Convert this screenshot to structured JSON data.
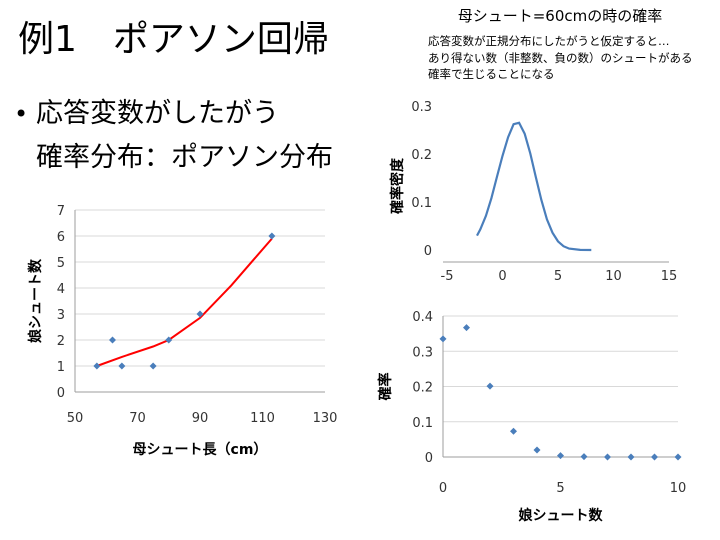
{
  "slide": {
    "title": "例1　ポアソン回帰",
    "bullet_line1": "応答変数がしたがう",
    "bullet_line2": "確率分布：ポアソン分布",
    "right_title": "母シュート=60cmの時の確率",
    "note_lines": [
      "応答変数が正規分布にしたがうと仮定すると…",
      "あり得ない数（非整数、負の数）のシュートがある",
      "確率で生じることになる"
    ]
  },
  "chart_data": [
    {
      "type": "scatter",
      "xlabel": "母シュート長（cm）",
      "ylabel": "娘シュート数",
      "xlim": [
        50,
        130
      ],
      "ylim": [
        0,
        7
      ],
      "xticks": [
        50,
        70,
        90,
        110,
        130
      ],
      "yticks": [
        0,
        1,
        2,
        3,
        4,
        5,
        6,
        7
      ],
      "grid": true,
      "points": {
        "x": [
          57,
          62,
          65,
          75,
          80,
          90,
          113
        ],
        "y": [
          1,
          2,
          1,
          1,
          2,
          3,
          6
        ]
      },
      "fit_line": {
        "x": [
          57,
          65,
          75,
          80,
          90,
          100,
          113
        ],
        "y": [
          1.0,
          1.35,
          1.75,
          2.0,
          2.85,
          4.1,
          5.9
        ],
        "color": "#ff0000"
      },
      "point_color": "#4a7ebb"
    },
    {
      "type": "line",
      "ylabel": "確率密度",
      "xlim": [
        -5,
        15
      ],
      "ylim": [
        0,
        0.3
      ],
      "xticks": [
        -5,
        0,
        5,
        10,
        15
      ],
      "yticks": [
        0,
        0.1,
        0.2,
        0.3
      ],
      "grid": false,
      "series": [
        {
          "x": [
            -2.3,
            -2,
            -1.5,
            -1,
            -0.5,
            0,
            0.5,
            1,
            1.5,
            2,
            2.5,
            3,
            3.5,
            4,
            4.5,
            5,
            5.5,
            6,
            7,
            8
          ],
          "y": [
            0.03,
            0.043,
            0.071,
            0.108,
            0.152,
            0.196,
            0.235,
            0.262,
            0.265,
            0.242,
            0.201,
            0.152,
            0.104,
            0.064,
            0.036,
            0.018,
            0.008,
            0.003,
            0.0003,
            0.0
          ]
        }
      ],
      "color": "#4a7ebb"
    },
    {
      "type": "scatter",
      "xlabel": "娘シュート数",
      "ylabel": "確率",
      "xlim": [
        0,
        10
      ],
      "ylim": [
        0,
        0.4
      ],
      "xticks": [
        0,
        5,
        10
      ],
      "yticks": [
        0,
        0.1,
        0.2,
        0.3,
        0.4
      ],
      "grid": true,
      "points": {
        "x": [
          0,
          1,
          2,
          3,
          4,
          5,
          6,
          7,
          8,
          9,
          10
        ],
        "y": [
          0.335,
          0.367,
          0.201,
          0.073,
          0.02,
          0.004,
          0.001,
          0.0,
          0.0,
          0.0,
          0.0
        ]
      },
      "point_color": "#4a7ebb"
    }
  ]
}
